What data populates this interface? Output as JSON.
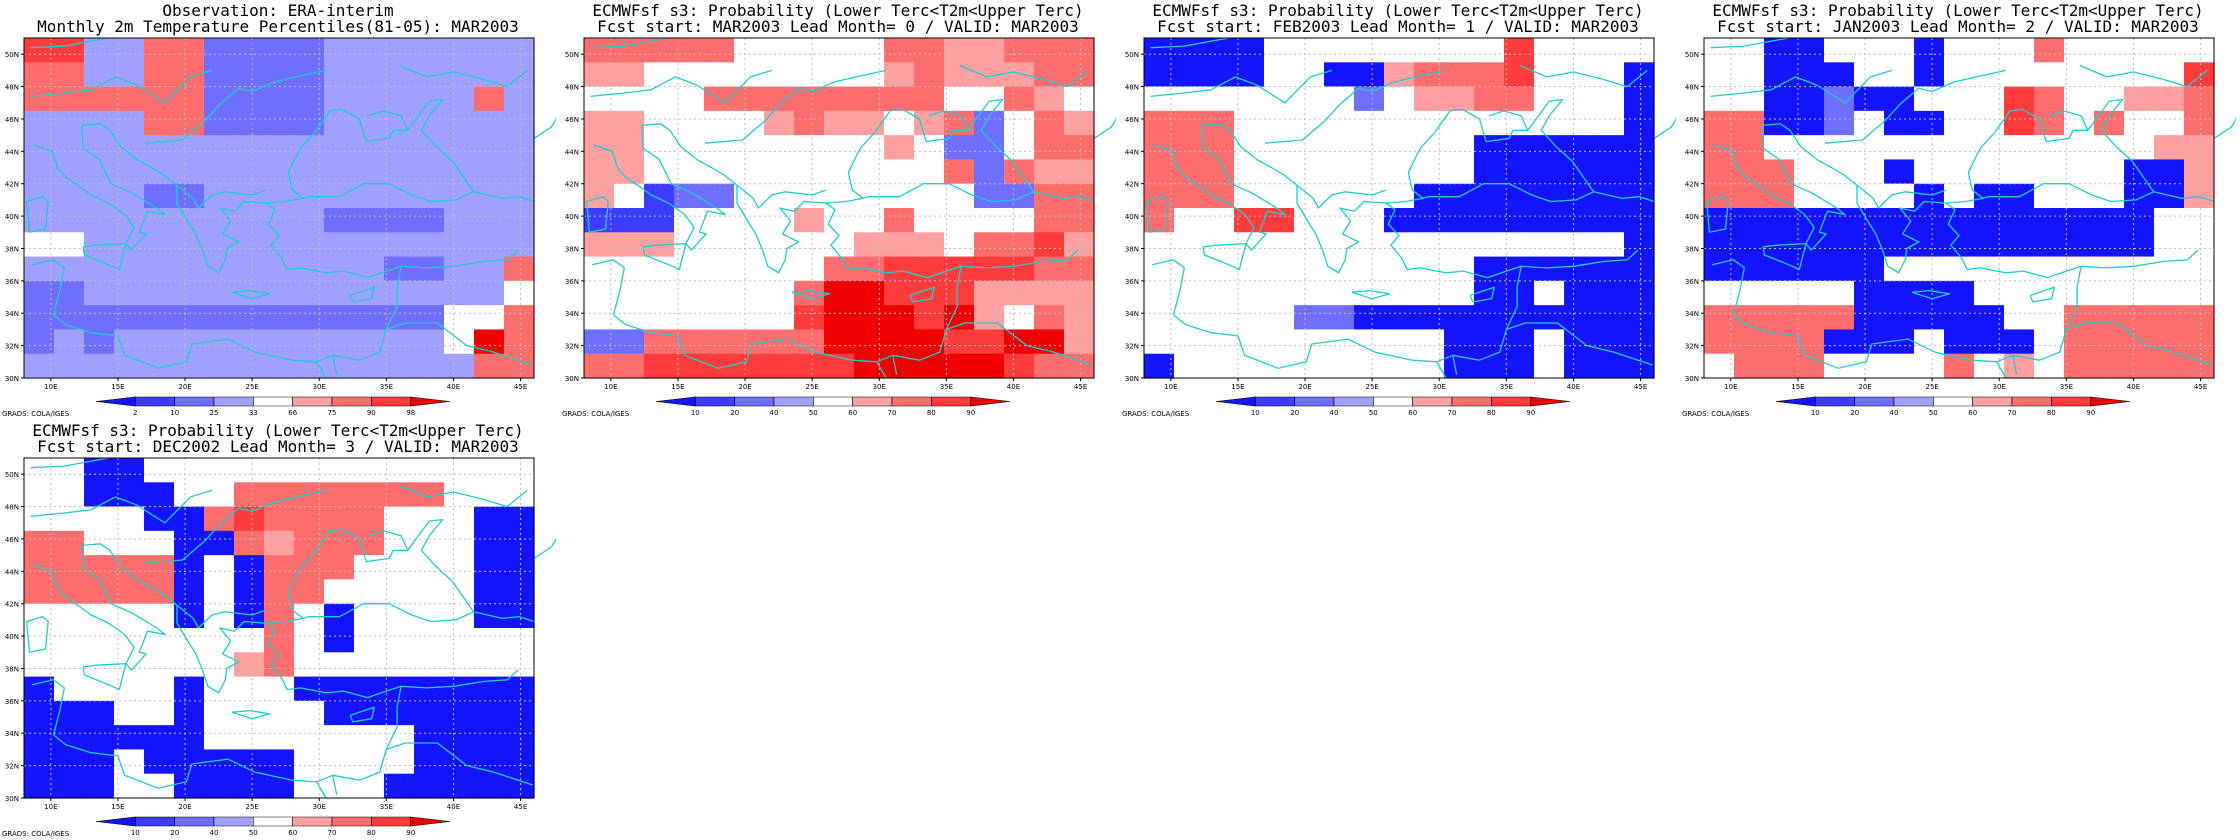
{
  "colors": {
    "coast": "#20cccc",
    "grid": "#bfbfbf",
    "scale9": [
      "#1414ff",
      "#3c3cff",
      "#6e6eff",
      "#a0a0ff",
      "#ffffff",
      "#ffa0a0",
      "#ff6e6e",
      "#ff3c3c",
      "#f00000"
    ]
  },
  "axes": {
    "lon_labels": [
      "10E",
      "15E",
      "20E",
      "25E",
      "30E",
      "35E",
      "40E",
      "45E"
    ],
    "lat_labels": [
      "30N",
      "32N",
      "34N",
      "36N",
      "38N",
      "40N",
      "42N",
      "44N",
      "46N",
      "48N",
      "50N"
    ],
    "lon_range": [
      8,
      46
    ],
    "lat_range": [
      30,
      51
    ]
  },
  "credit": "GRADS: COLA/IGES",
  "panels": [
    {
      "title_line1": "Observation: ERA-interim",
      "title_line2": "Monthly 2m Temperature Percentiles(81-05): MAR2003",
      "colorbar_labels": [
        "2",
        "10",
        "25",
        "33",
        "66",
        "75",
        "90",
        "98"
      ],
      "grid_levels": [
        "77336622223333333",
        "66336622223333333",
        "66666622223333363",
        "33336622223333333",
        "33333333333333333",
        "33333333333333333",
        "33332233333333333",
        "33333333332222333",
        "44333333333333333",
        "33333333333322336",
        "22333333333333334",
        "22222222222222446",
        "23233333333333486",
        "33333333333333366"
      ]
    },
    {
      "title_line1": "ECMWFsf s3: Probability (Lower Terc<T2m<Upper Terc)",
      "title_line2": "Fcst start: MAR2003  Lead Month= 0 / VALID: MAR2003",
      "colorbar_labels": [
        "10",
        "20",
        "40",
        "50",
        "60",
        "70",
        "80",
        "90"
      ],
      "grid_levels": [
        "66666444446655666",
        "55444444445655566",
        "44446666666644654",
        "55444456554562465",
        "55444444445422466",
        "55444444444462655",
        "54122444444442266",
        "11144445446444466",
        "55544444455546675",
        "44444444667777766",
        "44444446887775555",
        "44444447888785465",
        "22666666888877885",
        "66777777788888766"
      ]
    },
    {
      "title_line1": "ECMWFsf s3: Probability (Lower Terc<T2m<Upper Terc)",
      "title_line2": "Fcst start: FEB2003  Lead Month= 1 / VALID: MAR2003",
      "colorbar_labels": [
        "10",
        "20",
        "40",
        "50",
        "60",
        "70",
        "80",
        "90"
      ],
      "grid_levels": [
        "00004444444474444",
        "00004400566674440",
        "44444442455664440",
        "66644444444444440",
        "66644444444000000",
        "66644444444000000",
        "66644444400000000",
        "64477444000000000",
        "44444444444444440",
        "44444444444000000",
        "44444444444004000",
        "44444220000000000",
        "44444444440004000",
        "04444444440004000"
      ]
    },
    {
      "title_line1": "ECMWFsf s3: Probability (Lower Terc<T2m<Upper Terc)",
      "title_line2": "Fcst start: JAN2003  Lead Month= 2 / VALID: MAR2003",
      "colorbar_labels": [
        "10",
        "20",
        "40",
        "50",
        "60",
        "70",
        "80",
        "90"
      ],
      "grid_levels": [
        "44004440444644444",
        "44000440444444447",
        "44002004447644556",
        "66002400447646446",
        "66444444444444455",
        "66644404444444005",
        "66644440400444005",
        "00000000000000044",
        "00000000000000044",
        "00000044444444444",
        "44444000044444444",
        "66666000004466666",
        "66660004000466666",
        "46664444645466666"
      ]
    },
    {
      "title_line1": "ECMWFsf s3: Probability (Lower Terc<T2m<Upper Terc)",
      "title_line2": "Fcst start: DEC2002  Lead Month= 3 / VALID: MAR2003",
      "colorbar_labels": [
        "10",
        "20",
        "40",
        "50",
        "60",
        "70",
        "80",
        "90"
      ],
      "grid_levels": [
        "44004444444444444",
        "44000446666666444",
        "44440067666644400",
        "66444006566644400",
        "66666040666444400",
        "66666040664444400",
        "44444040640444400",
        "44444444640444444",
        "44444445644444444",
        "04444044400000000",
        "00044044440000000",
        "00000044444440000",
        "00040000044440000",
        "00044000044400000"
      ]
    }
  ]
}
